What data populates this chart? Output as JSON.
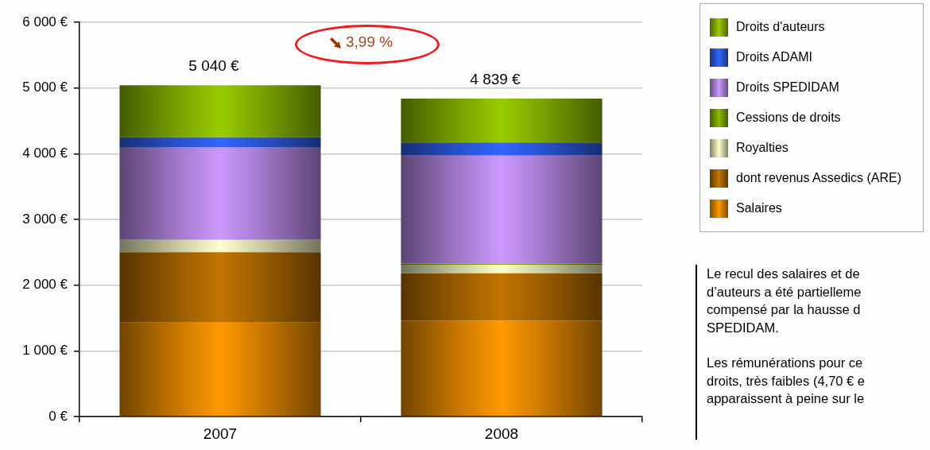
{
  "chart_data": {
    "type": "bar",
    "stacked": true,
    "categories": [
      "2007",
      "2008"
    ],
    "series": [
      {
        "name": "Salaires",
        "color": "#ff9900",
        "values": [
          1430,
          1460
        ]
      },
      {
        "name": "dont revenus Assedics (ARE)",
        "color": "#c27400",
        "values": [
          1070,
          720
        ]
      },
      {
        "name": "Royalties",
        "color": "#ffffcc",
        "values": [
          190,
          130
        ]
      },
      {
        "name": "Cessions de droits",
        "color": "#88bb00",
        "values": [
          0,
          20
        ]
      },
      {
        "name": "Droits SPEDIDAM",
        "color": "#cc99ff",
        "values": [
          1410,
          1640
        ]
      },
      {
        "name": "Droits ADAMI",
        "color": "#3366ff",
        "values": [
          150,
          200
        ]
      },
      {
        "name": "Droits d'auteurs",
        "color": "#99cc00",
        "values": [
          790,
          669
        ]
      }
    ],
    "totals": [
      "5 040 €",
      "4 839 €"
    ],
    "ylim": [
      0,
      6000
    ],
    "yticks": [
      {
        "value": 0,
        "label": "0 €"
      },
      {
        "value": 1000,
        "label": "1 000 €"
      },
      {
        "value": 2000,
        "label": "2 000 €"
      },
      {
        "value": 3000,
        "label": "3 000 €"
      },
      {
        "value": 4000,
        "label": "4 000 €"
      },
      {
        "value": 5000,
        "label": "5 000 €"
      },
      {
        "value": 6000,
        "label": "6 000 €"
      }
    ],
    "grid": "y",
    "legend": "right",
    "annotations": [
      "3,99 %",
      "Le recul des salaires et de\nd’auteurs a été partielleme\ncompensé par la hausse d\nSPEDIDAM.",
      "Les rémunérations pour ce\ndroits, très faibles (4,70 € e\napparaissent à peine sur le"
    ]
  }
}
